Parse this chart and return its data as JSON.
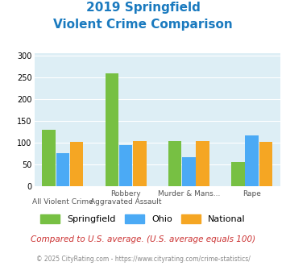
{
  "title_line1": "2019 Springfield",
  "title_line2": "Violent Crime Comparison",
  "cat_top": [
    "",
    "Robbery",
    "Murder & Mans...",
    "Rape"
  ],
  "cat_bot": [
    "All Violent Crime",
    "Aggravated Assault",
    "",
    ""
  ],
  "springfield": [
    130,
    258,
    104,
    56
  ],
  "ohio": [
    76,
    95,
    66,
    116
  ],
  "national": [
    102,
    103,
    103,
    102
  ],
  "springfield_color": "#77c043",
  "ohio_color": "#4baaf5",
  "national_color": "#f5a623",
  "bg_color": "#ddeef5",
  "title_color": "#1a7abf",
  "ylabel_ticks": [
    0,
    50,
    100,
    150,
    200,
    250,
    300
  ],
  "ylim": [
    0,
    305
  ],
  "footnote": "Compared to U.S. average. (U.S. average equals 100)",
  "copyright": "© 2025 CityRating.com - https://www.cityrating.com/crime-statistics/",
  "footnote_color": "#cc3333",
  "copyright_color": "#888888"
}
